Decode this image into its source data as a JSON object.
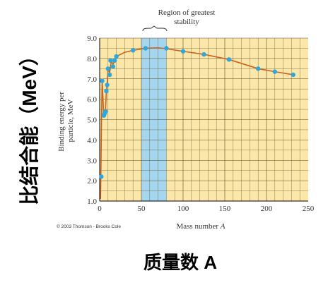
{
  "chart_data": {
    "type": "scatter",
    "xlabel": "Mass number A",
    "ylabel": "Binding energy per particle, MeV",
    "xlim": [
      0,
      250
    ],
    "ylim": [
      1.0,
      9.0
    ],
    "x_ticks": [
      "0",
      "50",
      "100",
      "150",
      "200",
      "250"
    ],
    "y_ticks": [
      "1.0",
      "2.0",
      "3.0",
      "4.0",
      "5.0",
      "6.0",
      "7.0",
      "8.0",
      "9.0"
    ],
    "grid": true,
    "highlight_region": {
      "label_line1": "Region of greatest",
      "label_line2": "stability",
      "x_range": [
        50,
        80
      ]
    },
    "points": [
      {
        "x": 2,
        "y": 2.2
      },
      {
        "x": 3,
        "y": 6.9
      },
      {
        "x": 5,
        "y": 5.2
      },
      {
        "x": 6,
        "y": 5.3
      },
      {
        "x": 7,
        "y": 5.4
      },
      {
        "x": 8,
        "y": 6.4
      },
      {
        "x": 9,
        "y": 6.7
      },
      {
        "x": 10,
        "y": 7.5
      },
      {
        "x": 12,
        "y": 7.2
      },
      {
        "x": 13,
        "y": 7.9
      },
      {
        "x": 16,
        "y": 7.6
      },
      {
        "x": 18,
        "y": 7.9
      },
      {
        "x": 20,
        "y": 8.1
      },
      {
        "x": 40,
        "y": 8.4
      },
      {
        "x": 55,
        "y": 8.5
      },
      {
        "x": 80,
        "y": 8.5
      },
      {
        "x": 100,
        "y": 8.35
      },
      {
        "x": 125,
        "y": 8.2
      },
      {
        "x": 155,
        "y": 7.95
      },
      {
        "x": 190,
        "y": 7.5
      },
      {
        "x": 210,
        "y": 7.35
      },
      {
        "x": 232,
        "y": 7.2
      }
    ],
    "curve": [
      [
        1,
        1.1
      ],
      [
        1.6,
        2.8
      ],
      [
        2.2,
        5.0
      ],
      [
        3,
        6.9
      ],
      [
        3.8,
        6.2
      ],
      [
        4.6,
        5.4
      ],
      [
        5,
        5.2
      ],
      [
        6,
        5.3
      ],
      [
        7,
        5.45
      ],
      [
        8,
        6.4
      ],
      [
        9,
        6.7
      ],
      [
        10,
        7.5
      ],
      [
        12,
        7.3
      ],
      [
        14,
        7.9
      ],
      [
        16,
        7.7
      ],
      [
        18,
        7.9
      ],
      [
        20,
        8.1
      ],
      [
        30,
        8.3
      ],
      [
        40,
        8.4
      ],
      [
        55,
        8.5
      ],
      [
        70,
        8.52
      ],
      [
        80,
        8.48
      ],
      [
        100,
        8.35
      ],
      [
        125,
        8.2
      ],
      [
        155,
        7.95
      ],
      [
        190,
        7.5
      ],
      [
        210,
        7.35
      ],
      [
        232,
        7.2
      ]
    ],
    "colors": {
      "plot_bg": "#fbe7a9",
      "grid": "#5c4a1e",
      "region": "#a4d6f0",
      "curve": "#c8641e",
      "point": "#2ea7dc",
      "axis": "#000000"
    }
  },
  "credit": "© 2003 Thomson - Brooks Cole",
  "cn_ylabel": "比结合能（MeV）",
  "cn_xlabel": "质量数 A"
}
